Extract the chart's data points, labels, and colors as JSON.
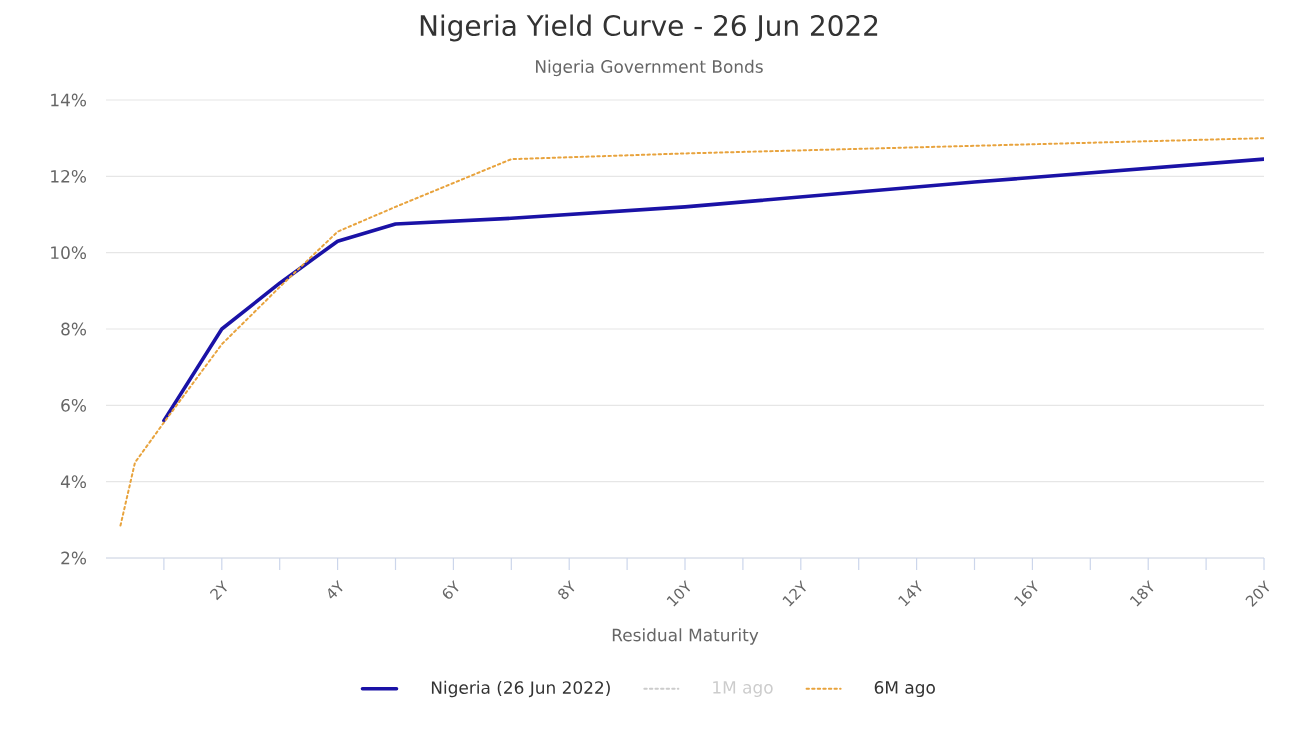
{
  "chart_data": {
    "type": "line",
    "title": "Nigeria Yield Curve - 26 Jun 2022",
    "subtitle": "Nigeria Government Bonds",
    "xlabel": "Residual Maturity",
    "xlim": [
      0,
      20
    ],
    "xticks": [
      {
        "value": 1,
        "label": null
      },
      {
        "value": 2,
        "label": "2Y"
      },
      {
        "value": 3,
        "label": null
      },
      {
        "value": 4,
        "label": "4Y"
      },
      {
        "value": 5,
        "label": null
      },
      {
        "value": 6,
        "label": "6Y"
      },
      {
        "value": 7,
        "label": null
      },
      {
        "value": 8,
        "label": "8Y"
      },
      {
        "value": 9,
        "label": null
      },
      {
        "value": 10,
        "label": "10Y"
      },
      {
        "value": 11,
        "label": null
      },
      {
        "value": 12,
        "label": "12Y"
      },
      {
        "value": 13,
        "label": null
      },
      {
        "value": 14,
        "label": "14Y"
      },
      {
        "value": 15,
        "label": null
      },
      {
        "value": 16,
        "label": "16Y"
      },
      {
        "value": 17,
        "label": null
      },
      {
        "value": 18,
        "label": "18Y"
      },
      {
        "value": 19,
        "label": null
      },
      {
        "value": 20,
        "label": "20Y"
      }
    ],
    "ylim": [
      2,
      14
    ],
    "yticks": [
      {
        "value": 2,
        "label": "2%"
      },
      {
        "value": 4,
        "label": "4%"
      },
      {
        "value": 6,
        "label": "6%"
      },
      {
        "value": 8,
        "label": "8%"
      },
      {
        "value": 10,
        "label": "10%"
      },
      {
        "value": 12,
        "label": "12%"
      },
      {
        "value": 14,
        "label": "14%"
      }
    ],
    "grid": "y",
    "legend": "bottom",
    "marker": "none",
    "series": [
      {
        "name": "Nigeria (26 Jun 2022)",
        "color": "#1a12a6",
        "line_style": "solid",
        "x": [
          1,
          2,
          3,
          4,
          5,
          7,
          10,
          15,
          20
        ],
        "values": [
          5.6,
          8.0,
          9.2,
          10.3,
          10.75,
          10.9,
          11.2,
          11.85,
          12.45
        ]
      },
      {
        "name": "1M ago",
        "color": "#cccccc",
        "line_style": "dotted"
      },
      {
        "name": "6M ago",
        "color": "#e8a33d",
        "line_style": "dotted",
        "x": [
          0.25,
          0.5,
          1,
          2,
          3,
          4,
          5,
          7,
          10,
          15,
          20
        ],
        "values": [
          2.85,
          4.5,
          5.55,
          7.6,
          9.1,
          10.55,
          11.2,
          12.45,
          12.6,
          12.8,
          13.0
        ]
      }
    ]
  }
}
